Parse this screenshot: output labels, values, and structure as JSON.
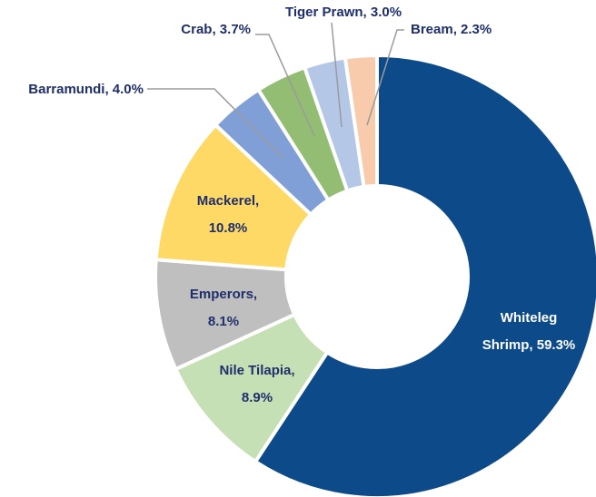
{
  "chart_data": {
    "type": "pie",
    "variant": "donut",
    "title": "",
    "slices": [
      {
        "name": "Whiteleg Shrimp",
        "value": 59.3,
        "label_lines": [
          "Whiteleg",
          "Shrimp, 59.3%"
        ],
        "color": "#0d4a8a",
        "label_color": "#ffffff"
      },
      {
        "name": "Nile Tilapia",
        "value": 8.9,
        "label_lines": [
          "Nile Tilapia,",
          "8.9%"
        ],
        "color": "#c5e0b4",
        "label_color": "#1f2f6b"
      },
      {
        "name": "Emperors",
        "value": 8.1,
        "label_lines": [
          "Emperors,",
          "8.1%"
        ],
        "color": "#bfbfbf",
        "label_color": "#1f2f6b"
      },
      {
        "name": "Mackerel",
        "value": 10.8,
        "label_lines": [
          "Mackerel,",
          "10.8%"
        ],
        "color": "#ffd966",
        "label_color": "#1f2f6b"
      },
      {
        "name": "Barramundi",
        "value": 4.0,
        "label_lines": [
          "Barramundi, 4.0%"
        ],
        "color": "#7f9fd6",
        "label_color": "#1f2f6b"
      },
      {
        "name": "Crab",
        "value": 3.7,
        "label_lines": [
          "Crab, 3.7%"
        ],
        "color": "#93bd73",
        "label_color": "#1f2f6b"
      },
      {
        "name": "Tiger Prawn",
        "value": 3.0,
        "label_lines": [
          "Tiger Prawn, 3.0%"
        ],
        "color": "#b4c7e7",
        "label_color": "#1f2f6b"
      },
      {
        "name": "Bream",
        "value": 2.3,
        "label_lines": [
          "Bream, 2.3%"
        ],
        "color": "#f8cbad",
        "label_color": "#1f2f6b"
      }
    ],
    "start": "12 o'clock",
    "direction": "clockwise",
    "legend": "none",
    "leader_line_color": "#9b9b9b"
  }
}
